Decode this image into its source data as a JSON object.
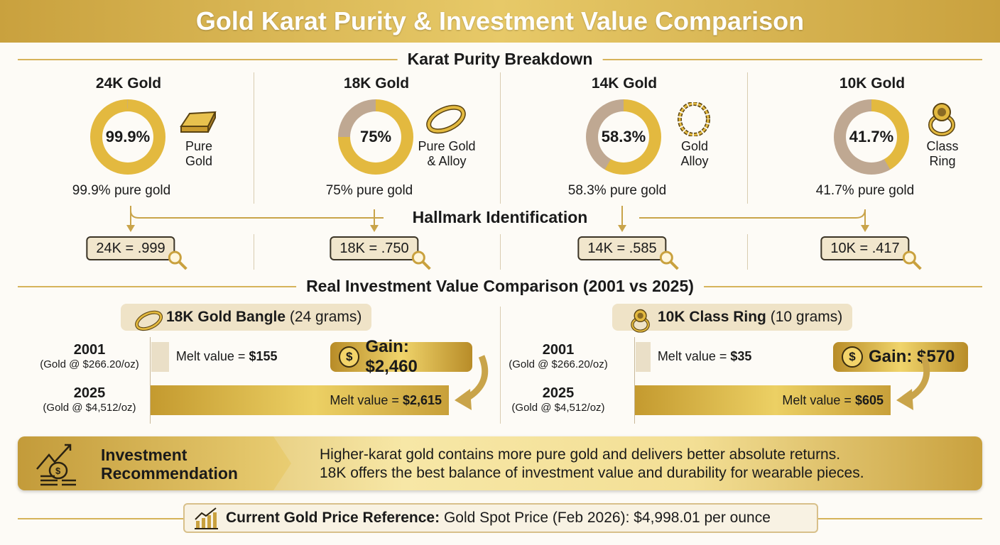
{
  "title": "Gold Karat Purity & Investment Value Comparison",
  "purity": {
    "heading": "Karat Purity Breakdown",
    "colors": {
      "gold": "#e3b93f",
      "alloy": "#bfa892"
    },
    "items": [
      {
        "title": "24K Gold",
        "percent": 99.9,
        "center": "99.9%",
        "label1": "Pure",
        "label2": "Gold",
        "caption": "99.9% pure gold",
        "icon": "gold-bar-icon",
        "hallmark": "24K = .999"
      },
      {
        "title": "18K Gold",
        "percent": 75,
        "center": "75%",
        "label1": "Pure Gold",
        "label2": "& Alloy",
        "caption": "75% pure gold",
        "icon": "gold-ring-icon",
        "hallmark": "18K = .750"
      },
      {
        "title": "14K Gold",
        "percent": 58.3,
        "center": "58.3%",
        "label1": "Gold",
        "label2": "Alloy",
        "caption": "58.3% pure gold",
        "icon": "chain-icon",
        "hallmark": "14K = .585"
      },
      {
        "title": "10K Gold",
        "percent": 41.7,
        "center": "41.7%",
        "label1": "Class",
        "label2": "Ring",
        "caption": "41.7% pure gold",
        "icon": "class-ring-icon",
        "hallmark": "10K = .417"
      }
    ]
  },
  "hallmark": {
    "heading": "Hallmark Identification"
  },
  "investment": {
    "heading": "Real Investment Value Comparison (2001 vs 2025)",
    "panels": [
      {
        "item": "18K Gold Bangle",
        "weight": "(24 grams)",
        "y1": "2001",
        "p1": "(Gold @ $266.20/oz)",
        "y2": "2025",
        "p2": "(Gold @ $4,512/oz)",
        "melt_label": "Melt value = ",
        "v1": 155,
        "v1_text": "$155",
        "v2": 2615,
        "v2_text": "$2,615",
        "gain": "Gain: $2,460"
      },
      {
        "item": "10K Class Ring",
        "weight": "(10 grams)",
        "y1": "2001",
        "p1": "(Gold @ $266.20/oz)",
        "y2": "2025",
        "p2": "(Gold @ $4,512/oz)",
        "melt_label": "Melt value = ",
        "v1": 35,
        "v1_text": "$35",
        "v2": 605,
        "v2_text": "$605",
        "gain": "Gain: $570"
      }
    ]
  },
  "recommendation": {
    "title1": "Investment",
    "title2": "Recommendation",
    "line1": "Higher-karat gold contains more pure gold and delivers better absolute returns.",
    "line2": "18K offers the best balance of investment value and durability for wearable pieces."
  },
  "reference": {
    "label": "Current Gold Price Reference:",
    "text": "Gold Spot Price (Feb 2026): $4,998.01 per ounce"
  }
}
